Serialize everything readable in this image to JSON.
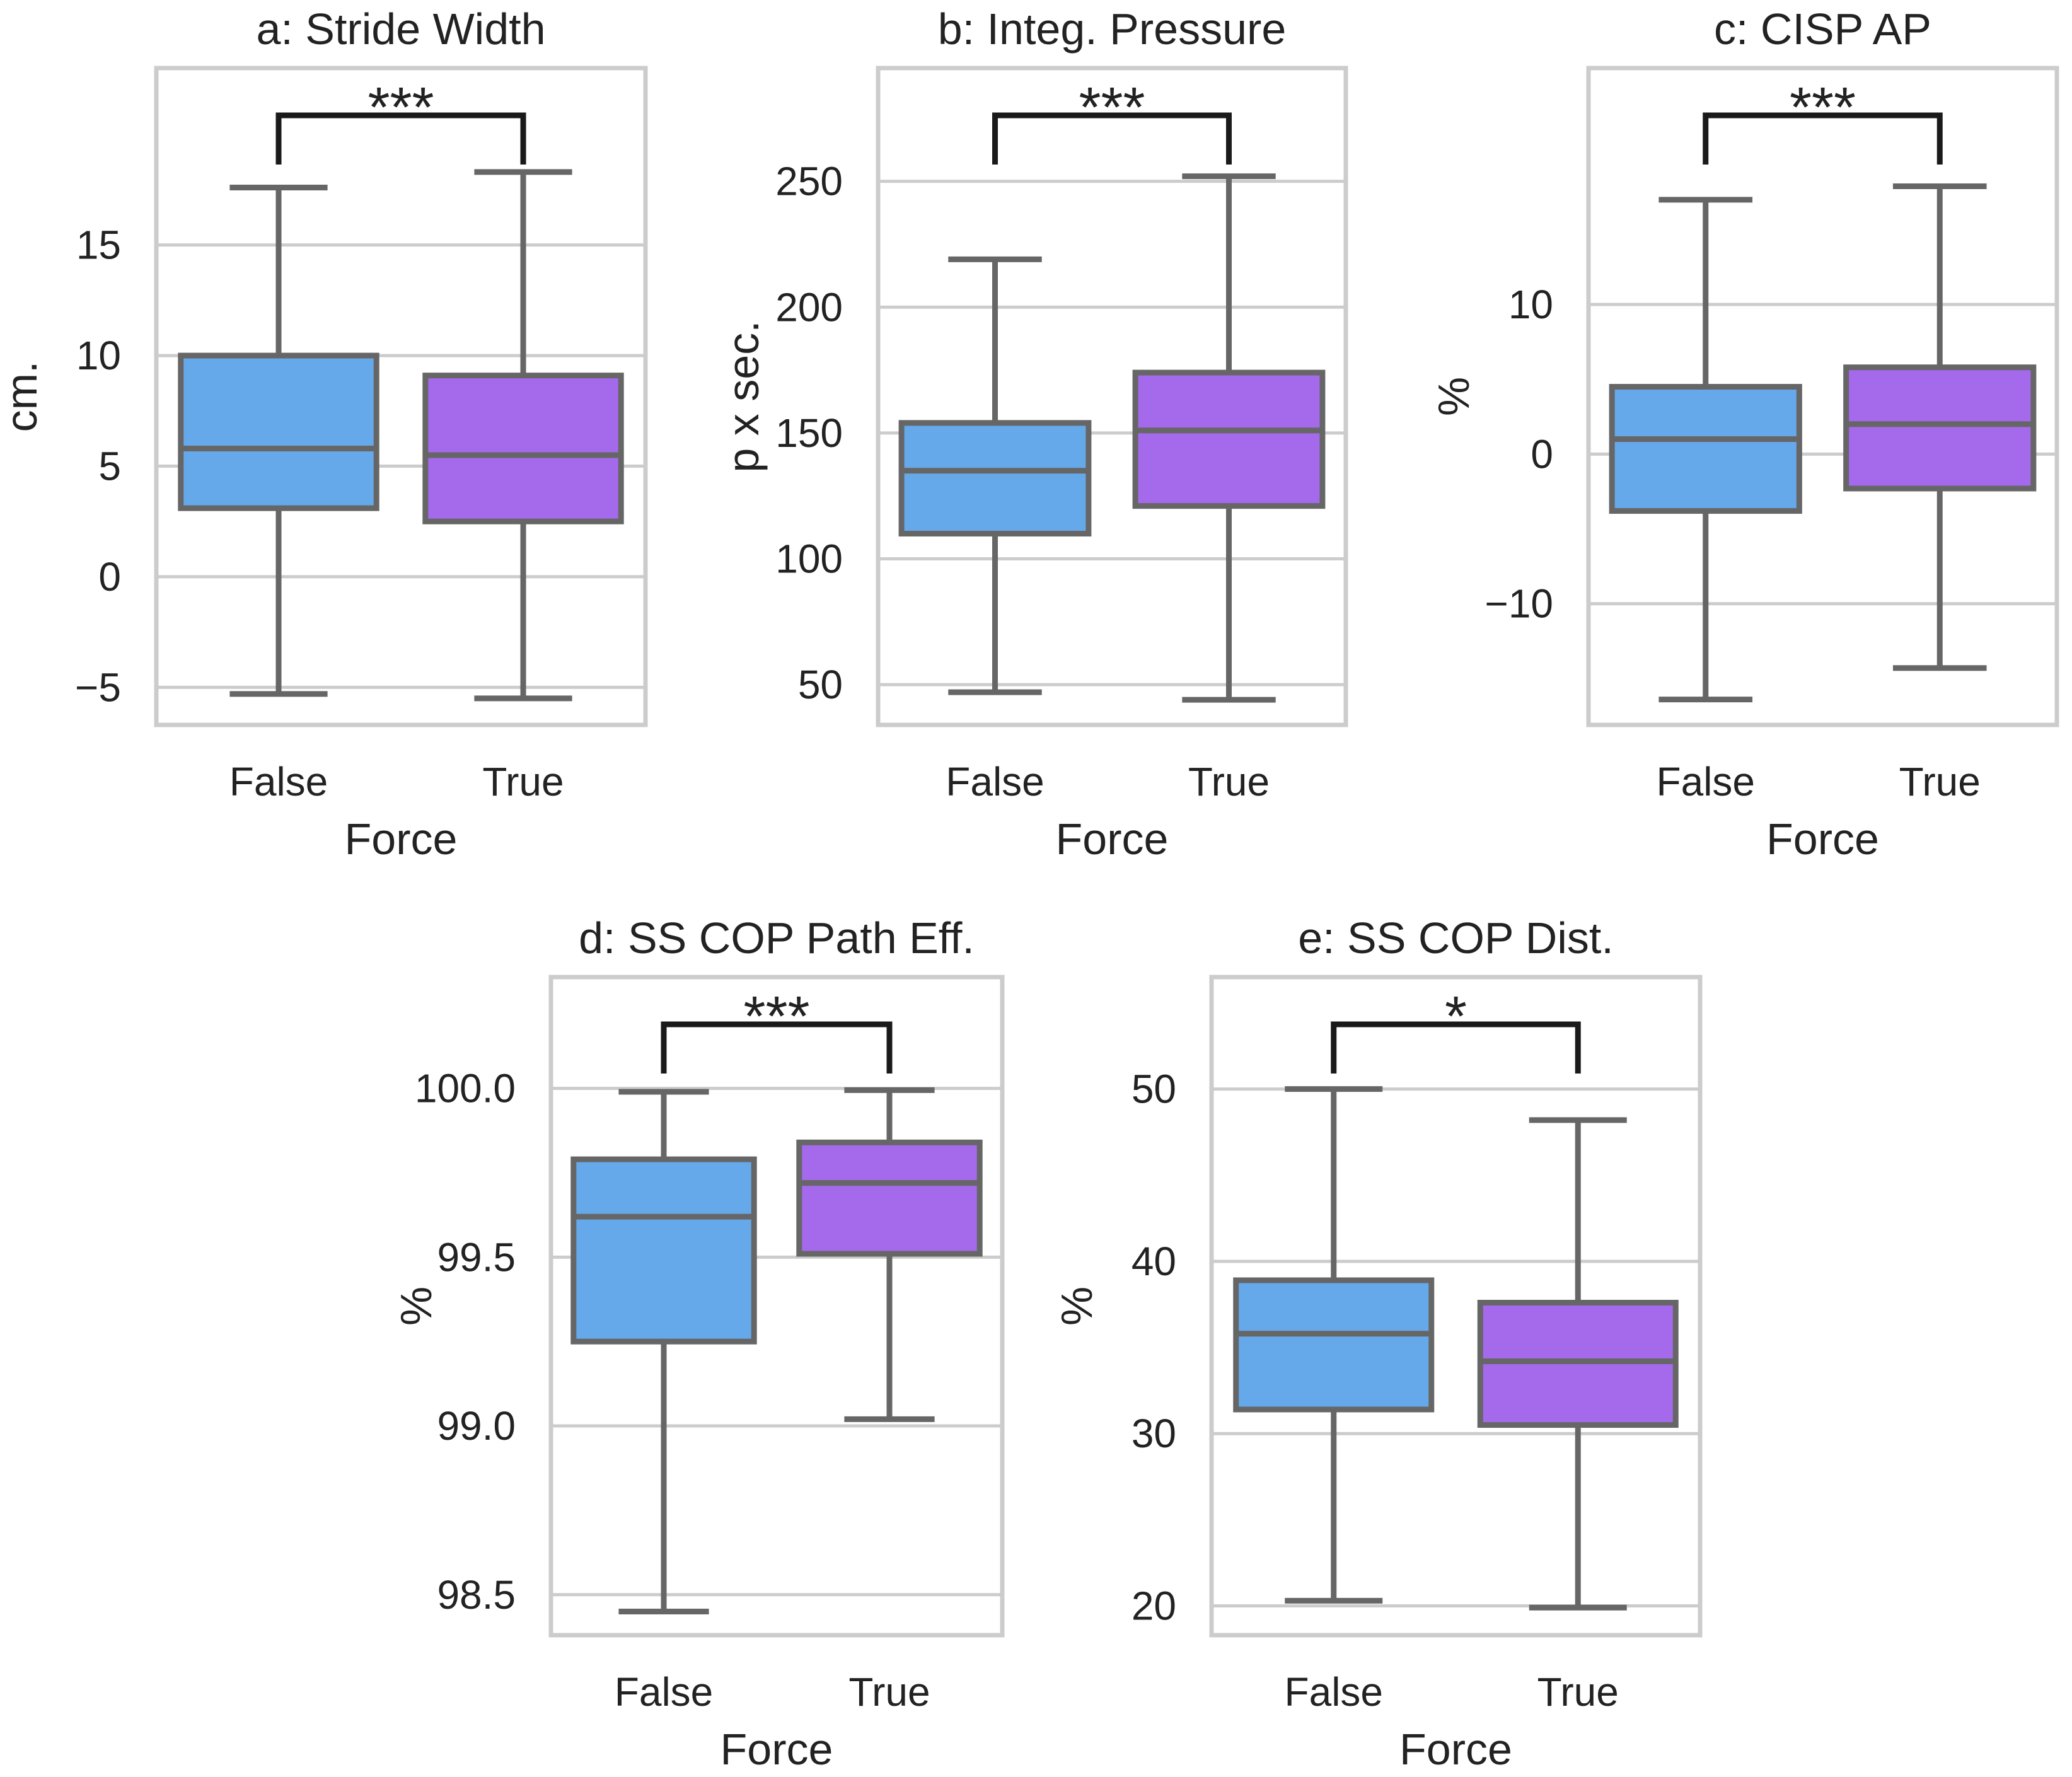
{
  "colors": {
    "false_box": "#66a9ea",
    "true_box": "#a569ec"
  },
  "chart_data": [
    {
      "type": "box",
      "title": "a: Stride Width",
      "xlabel": "Force",
      "ylabel": "cm.",
      "ylim": [
        -6.7,
        23.0
      ],
      "yticks": [
        -5,
        0,
        5,
        10,
        15
      ],
      "categories": [
        "False",
        "True"
      ],
      "boxes": [
        {
          "category": "False",
          "whisker_low": -5.3,
          "q1": 3.1,
          "median": 5.8,
          "q3": 10.0,
          "whisker_high": 17.6
        },
        {
          "category": "True",
          "whisker_low": -5.5,
          "q1": 2.5,
          "median": 5.5,
          "q3": 9.1,
          "whisker_high": 18.3
        }
      ],
      "significance": "***"
    },
    {
      "type": "box",
      "title": "b: Integ. Pressure",
      "xlabel": "Force",
      "ylabel": "p x sec.",
      "ylim": [
        34,
        295
      ],
      "yticks": [
        50,
        100,
        150,
        200,
        250
      ],
      "categories": [
        "False",
        "True"
      ],
      "boxes": [
        {
          "category": "False",
          "whisker_low": 47,
          "q1": 110,
          "median": 135,
          "q3": 154,
          "whisker_high": 219
        },
        {
          "category": "True",
          "whisker_low": 44,
          "q1": 121,
          "median": 151,
          "q3": 174,
          "whisker_high": 252
        }
      ],
      "significance": "***"
    },
    {
      "type": "box",
      "title": "c: CISP AP",
      "xlabel": "Force",
      "ylabel": "%",
      "ylim": [
        -18.1,
        25.8
      ],
      "yticks": [
        -10,
        0,
        10
      ],
      "categories": [
        "False",
        "True"
      ],
      "boxes": [
        {
          "category": "False",
          "whisker_low": -16.4,
          "q1": -3.8,
          "median": 1.0,
          "q3": 4.5,
          "whisker_high": 17.0
        },
        {
          "category": "True",
          "whisker_low": -14.3,
          "q1": -2.3,
          "median": 2.0,
          "q3": 5.8,
          "whisker_high": 17.9
        }
      ],
      "significance": "***"
    },
    {
      "type": "box",
      "title": "d: SS COP Path Eff.",
      "xlabel": "Force",
      "ylabel": "%",
      "ylim": [
        98.38,
        100.33
      ],
      "yticks": [
        98.5,
        99.0,
        99.5,
        100.0
      ],
      "categories": [
        "False",
        "True"
      ],
      "boxes": [
        {
          "category": "False",
          "whisker_low": 98.45,
          "q1": 99.25,
          "median": 99.62,
          "q3": 99.79,
          "whisker_high": 99.99
        },
        {
          "category": "True",
          "whisker_low": 99.02,
          "q1": 99.51,
          "median": 99.72,
          "q3": 99.84,
          "whisker_high": 99.995
        }
      ],
      "significance": "***"
    },
    {
      "type": "box",
      "title": "e: SS COP Dist.",
      "xlabel": "Force",
      "ylabel": "%",
      "ylim": [
        18.3,
        56.5
      ],
      "yticks": [
        20,
        30,
        40,
        50
      ],
      "categories": [
        "False",
        "True"
      ],
      "boxes": [
        {
          "category": "False",
          "whisker_low": 20.3,
          "q1": 31.4,
          "median": 35.8,
          "q3": 38.9,
          "whisker_high": 50.0
        },
        {
          "category": "True",
          "whisker_low": 19.9,
          "q1": 30.5,
          "median": 34.2,
          "q3": 37.6,
          "whisker_high": 48.2
        }
      ],
      "significance": "*"
    }
  ]
}
